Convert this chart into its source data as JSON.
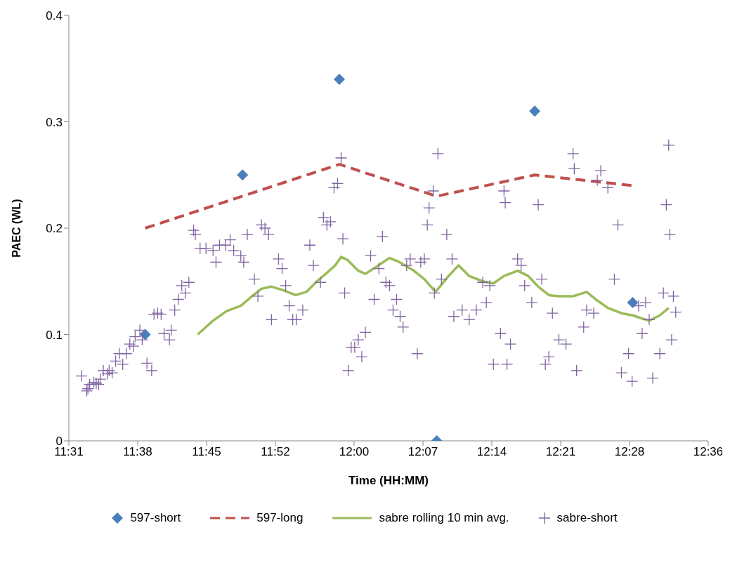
{
  "chart_data": {
    "type": "scatter",
    "xlabel": "Time (HH:MM)",
    "ylabel": "PAEC (WL)",
    "xlim": [
      11.516667,
      12.6
    ],
    "xticks": [
      {
        "value": 11.516667,
        "label": "11:31"
      },
      {
        "value": 11.633333,
        "label": "11:38"
      },
      {
        "value": 11.75,
        "label": "11:45"
      },
      {
        "value": 11.866667,
        "label": "11:52"
      },
      {
        "value": 12.0,
        "label": "12:00"
      },
      {
        "value": 12.116667,
        "label": "12:07"
      },
      {
        "value": 12.233333,
        "label": "12:14"
      },
      {
        "value": 12.35,
        "label": "12:21"
      },
      {
        "value": 12.466667,
        "label": "12:28"
      },
      {
        "value": 12.6,
        "label": "12:36"
      }
    ],
    "ylim": [
      0,
      0.4
    ],
    "yticks": [
      0,
      0.1,
      0.2,
      0.3,
      0.4
    ],
    "grid": false,
    "legend": "bottom",
    "series": [
      {
        "name": "597-short",
        "marker": "diamond",
        "color": "#4a7ebb",
        "x": [
          11.646,
          11.811,
          11.975,
          12.14,
          12.306,
          12.472
        ],
        "values": [
          0.1,
          0.25,
          0.34,
          0,
          0.31,
          0.13
        ]
      },
      {
        "name": "597-long",
        "type": "line",
        "marker": "none",
        "line_style": "dashed",
        "color": "#c0504d",
        "x": [
          11.646,
          11.975,
          12.14,
          12.306,
          12.472
        ],
        "values": [
          0.2,
          0.26,
          0.23,
          0.25,
          0.24
        ]
      },
      {
        "name": "sabre rolling 10 min avg.",
        "type": "line",
        "marker": "none",
        "line_style": "solid",
        "color": "#9bbb59",
        "x": [
          11.735,
          11.761,
          11.784,
          11.808,
          11.825,
          11.843,
          11.86,
          11.878,
          11.901,
          11.919,
          11.937,
          11.954,
          11.968,
          11.978,
          11.989,
          12.007,
          12.019,
          12.036,
          12.06,
          12.077,
          12.101,
          12.119,
          12.138,
          12.16,
          12.177,
          12.195,
          12.218,
          12.236,
          12.254,
          12.277,
          12.295,
          12.312,
          12.33,
          12.347,
          12.371,
          12.394,
          12.412,
          12.43,
          12.453,
          12.472,
          12.488,
          12.5,
          12.518,
          12.533
        ],
        "values": [
          0.1,
          0.113,
          0.122,
          0.127,
          0.135,
          0.143,
          0.145,
          0.142,
          0.137,
          0.14,
          0.15,
          0.158,
          0.165,
          0.173,
          0.17,
          0.16,
          0.157,
          0.163,
          0.172,
          0.168,
          0.16,
          0.152,
          0.14,
          0.155,
          0.165,
          0.155,
          0.15,
          0.148,
          0.155,
          0.16,
          0.155,
          0.145,
          0.137,
          0.136,
          0.136,
          0.14,
          0.132,
          0.125,
          0.12,
          0.118,
          0.115,
          0.113,
          0.118,
          0.125
        ]
      },
      {
        "name": "sabre-short",
        "marker": "cross",
        "color": "#8064a2",
        "x": [
          11.538,
          11.547,
          11.549,
          11.552,
          11.559,
          11.563,
          11.567,
          11.57,
          11.575,
          11.582,
          11.585,
          11.59,
          11.596,
          11.602,
          11.608,
          11.614,
          11.62,
          11.626,
          11.629,
          11.637,
          11.641,
          11.649,
          11.657,
          11.661,
          11.667,
          11.673,
          11.678,
          11.687,
          11.69,
          11.696,
          11.702,
          11.708,
          11.714,
          11.72,
          11.728,
          11.731,
          11.739,
          11.749,
          11.761,
          11.766,
          11.772,
          11.782,
          11.79,
          11.796,
          11.808,
          11.813,
          11.819,
          11.831,
          11.837,
          11.843,
          11.849,
          11.855,
          11.86,
          11.872,
          11.878,
          11.884,
          11.89,
          11.896,
          11.902,
          11.913,
          11.925,
          11.931,
          11.943,
          11.948,
          11.954,
          11.96,
          11.966,
          11.972,
          11.978,
          11.981,
          11.984,
          11.99,
          11.995,
          12.001,
          12.007,
          12.013,
          12.019,
          12.028,
          12.034,
          12.042,
          12.048,
          12.054,
          12.06,
          12.066,
          12.072,
          12.078,
          12.083,
          12.089,
          12.095,
          12.107,
          12.113,
          12.119,
          12.124,
          12.127,
          12.134,
          12.136,
          12.142,
          12.148,
          12.157,
          12.166,
          12.169,
          12.183,
          12.195,
          12.207,
          12.218,
          12.224,
          12.23,
          12.236,
          12.248,
          12.254,
          12.256,
          12.259,
          12.265,
          12.277,
          12.283,
          12.289,
          12.301,
          12.312,
          12.318,
          12.324,
          12.33,
          12.336,
          12.347,
          12.359,
          12.371,
          12.373,
          12.377,
          12.389,
          12.394,
          12.406,
          12.412,
          12.418,
          12.43,
          12.441,
          12.447,
          12.453,
          12.465,
          12.471,
          12.482,
          12.488,
          12.494,
          12.5,
          12.506,
          12.518,
          12.524,
          12.529,
          12.533,
          12.535,
          12.538,
          12.541,
          12.545
        ],
        "values": [
          0.061,
          0.047,
          0.049,
          0.053,
          0.055,
          0.054,
          0.053,
          0.058,
          0.066,
          0.063,
          0.066,
          0.064,
          0.075,
          0.082,
          0.072,
          0.082,
          0.091,
          0.089,
          0.098,
          0.104,
          0.095,
          0.073,
          0.066,
          0.119,
          0.12,
          0.119,
          0.101,
          0.095,
          0.104,
          0.123,
          0.133,
          0.146,
          0.139,
          0.149,
          0.198,
          0.194,
          0.181,
          0.181,
          0.179,
          0.168,
          0.184,
          0.184,
          0.189,
          0.179,
          0.174,
          0.168,
          0.194,
          0.152,
          0.136,
          0.203,
          0.2,
          0.194,
          0.114,
          0.171,
          0.162,
          0.146,
          0.127,
          0.114,
          0.114,
          0.123,
          0.184,
          0.165,
          0.149,
          0.21,
          0.203,
          0.206,
          0.238,
          0.242,
          0.266,
          0.19,
          0.139,
          0.066,
          0.088,
          0.088,
          0.095,
          0.079,
          0.102,
          0.174,
          0.133,
          0.162,
          0.192,
          0.149,
          0.146,
          0.123,
          0.133,
          0.117,
          0.107,
          0.165,
          0.171,
          0.082,
          0.168,
          0.171,
          0.203,
          0.219,
          0.235,
          0.139,
          0.27,
          0.152,
          0.194,
          0.171,
          0.117,
          0.123,
          0.114,
          0.123,
          0.149,
          0.13,
          0.146,
          0.072,
          0.101,
          0.235,
          0.224,
          0.072,
          0.091,
          0.171,
          0.165,
          0.146,
          0.13,
          0.222,
          0.152,
          0.072,
          0.079,
          0.12,
          0.095,
          0.091,
          0.27,
          0.256,
          0.066,
          0.107,
          0.123,
          0.12,
          0.245,
          0.254,
          0.238,
          0.152,
          0.203,
          0.064,
          0.082,
          0.056,
          0.127,
          0.101,
          0.13,
          0.114,
          0.059,
          0.082,
          0.139,
          0.222,
          0.278,
          0.194,
          0.095,
          0.136,
          0.121
        ]
      }
    ]
  }
}
